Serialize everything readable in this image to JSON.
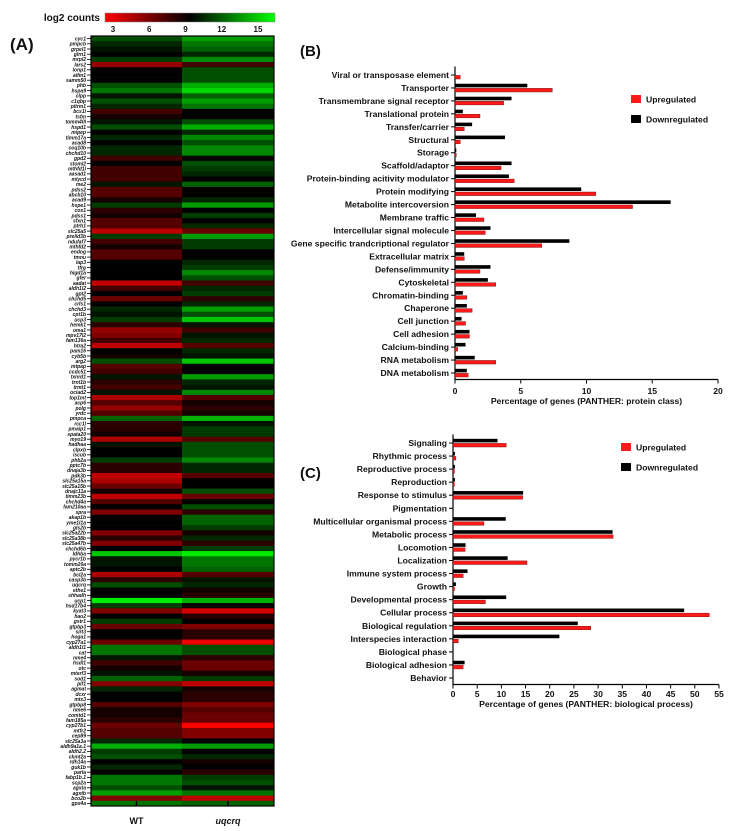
{
  "chart_data": [
    {
      "panel": "(A)",
      "type": "heatmap",
      "colorbar": {
        "label": "log2 counts",
        "ticks": [
          3,
          6,
          9,
          12,
          15
        ],
        "low_color": "#ff0000",
        "mid_color": "#000000",
        "high_color": "#00ff00"
      },
      "columns": [
        "WT",
        "uqcrq"
      ],
      "rows": [
        "cyc1",
        "pmpcb",
        "grpel1",
        "glrn1",
        "mrpl2",
        "lars2",
        "lonp1",
        "aifm1",
        "samm50",
        "phb",
        "hspa9",
        "clpp",
        "c1qbp",
        "pitrm1",
        "bcs1l",
        "tsfm",
        "tomm40l",
        "hspd1",
        "mipep",
        "timm17a",
        "acad8",
        "coq10b",
        "chchd10",
        "gpd2",
        "stoml2",
        "mthfd1l",
        "aasad1",
        "mlycd",
        "me2",
        "pdss2",
        "abcb10",
        "acad9",
        "hspe1",
        "cox1",
        "pdss1",
        "sfxn1",
        "ptrh1",
        "slc25a5",
        "prelid3b",
        "ndufaf7",
        "mthfd2",
        "endog",
        "tmnu",
        "lap3",
        "tfrg",
        "higd1a",
        "gfer",
        "aadat",
        "aldh1l2",
        "gpt2",
        "chchd5",
        "crls1",
        "chchd3",
        "cpt1b",
        "ucp3",
        "hemk1",
        "oma1",
        "mpv17l2",
        "fam136a",
        "htra2",
        "pam16",
        "cyb5b",
        "arg2",
        "mtpap",
        "ccdc51",
        "txnrd1",
        "trnt1b",
        "trmt1",
        "ociad2",
        "top1mt",
        "acp6",
        "polg",
        "yrdc",
        "pmpca",
        "rcc1l",
        "pmaip1",
        "spata20",
        "myo19",
        "hadhaa",
        "clpxb",
        "iscub",
        "phb2a",
        "pptc7b",
        "dnaja3b",
        "pdk3b",
        "slc25a15a",
        "slc25a15b",
        "dnajc11a",
        "timm23b",
        "chchd4a",
        "fam210aa",
        "spra",
        "akap1b",
        "yme1l1a",
        "gls2b",
        "slc25a22b",
        "slc25a38b",
        "slc25a47b",
        "chchd6b",
        "ldhba",
        "pycr1b",
        "tomm20a",
        "aptc2b",
        "bcl2a",
        "casp3b",
        "uqcrq",
        "ethe1",
        "shhadh",
        "ucp1",
        "hsd17b4",
        "kyat3",
        "hao2",
        "gstr1",
        "gtpbp3",
        "sirt3",
        "hoga1",
        "cyp27a1",
        "aldh1l1",
        "cat",
        "nme4",
        "hsdl1",
        "otc",
        "mterf3",
        "sod1",
        "pif1",
        "agmat",
        "dcxr",
        "mtx3",
        "gtpbp8",
        "nme6",
        "comtd1",
        "fam185a",
        "cyp27b1",
        "mtfr2",
        "cep89",
        "slc25a3a",
        "aldh9a1a.1",
        "aldh2.2",
        "ckmt2a",
        "rdh14a",
        "guk1b",
        "parla",
        "fabp1b.1",
        "scp2a",
        "agxta",
        "agxtb",
        "bco2b",
        "gpx4a"
      ],
      "values": [
        [
          11,
          13
        ],
        [
          10,
          12
        ],
        [
          9.5,
          11.5
        ],
        [
          9,
          10
        ],
        [
          10.5,
          12.5
        ],
        [
          5.5,
          7.5
        ],
        [
          9,
          11
        ],
        [
          9,
          11
        ],
        [
          9,
          11
        ],
        [
          11,
          13.5
        ],
        [
          12,
          14.5
        ],
        [
          9.5,
          11.5
        ],
        [
          11,
          13
        ],
        [
          10,
          12
        ],
        [
          7.5,
          9
        ],
        [
          8.5,
          9
        ],
        [
          9.5,
          11
        ],
        [
          11,
          13.5
        ],
        [
          9,
          10
        ],
        [
          10,
          12.5
        ],
        [
          9,
          11
        ],
        [
          10,
          12.5
        ],
        [
          10,
          12.5
        ],
        [
          7.5,
          9
        ],
        [
          9,
          11
        ],
        [
          7.5,
          10.5
        ],
        [
          7.5,
          10
        ],
        [
          7.5,
          9
        ],
        [
          9.5,
          11.5
        ],
        [
          7,
          9
        ],
        [
          7,
          9
        ],
        [
          8.5,
          10
        ],
        [
          10.5,
          13
        ],
        [
          8,
          9
        ],
        [
          8.5,
          10.5
        ],
        [
          7,
          9
        ],
        [
          7,
          10
        ],
        [
          4.5,
          6.5
        ],
        [
          10.5,
          13
        ],
        [
          7.5,
          10.5
        ],
        [
          8.5,
          10.5
        ],
        [
          7,
          9
        ],
        [
          7,
          9
        ],
        [
          9,
          10
        ],
        [
          9,
          10.5
        ],
        [
          9,
          12.5
        ],
        [
          9,
          11
        ],
        [
          4.5,
          7.5
        ],
        [
          7.5,
          10
        ],
        [
          9,
          10.5
        ],
        [
          6.5,
          8
        ],
        [
          9,
          10
        ],
        [
          10,
          13
        ],
        [
          9.5,
          11
        ],
        [
          10.5,
          14
        ],
        [
          8,
          9.5
        ],
        [
          5.5,
          7.5
        ],
        [
          6,
          9.5
        ],
        [
          7.5,
          10
        ],
        [
          4.5,
          7
        ],
        [
          9,
          10
        ],
        [
          8.5,
          9.5
        ],
        [
          11,
          14
        ],
        [
          7,
          9
        ],
        [
          7.5,
          9
        ],
        [
          9.5,
          13
        ],
        [
          8,
          10
        ],
        [
          7.5,
          9.5
        ],
        [
          9.5,
          12.5
        ],
        [
          5,
          7
        ],
        [
          7,
          8.5
        ],
        [
          5.5,
          8
        ],
        [
          7,
          8.5
        ],
        [
          11.5,
          13.5
        ],
        [
          8,
          9.5
        ],
        [
          8,
          10.5
        ],
        [
          8.5,
          10.5
        ],
        [
          5,
          7
        ],
        [
          9.5,
          11
        ],
        [
          9,
          11
        ],
        [
          9,
          11
        ],
        [
          10.5,
          12.5
        ],
        [
          8,
          10
        ],
        [
          8,
          10
        ],
        [
          4.5,
          7
        ],
        [
          5,
          9
        ],
        [
          6.5,
          9
        ],
        [
          8.5,
          11
        ],
        [
          4.5,
          6.5
        ],
        [
          7,
          9
        ],
        [
          9,
          11
        ],
        [
          6,
          8
        ],
        [
          9,
          11.5
        ],
        [
          9,
          11.5
        ],
        [
          9,
          10.5
        ],
        [
          6,
          8.5
        ],
        [
          8,
          10
        ],
        [
          6,
          8
        ],
        [
          9,
          10.5
        ],
        [
          14,
          15.5
        ],
        [
          9.5,
          12
        ],
        [
          9.5,
          12
        ],
        [
          9,
          11.5
        ],
        [
          5,
          7
        ],
        [
          8,
          9.5
        ],
        [
          11,
          10
        ],
        [
          9,
          8.5
        ],
        [
          9,
          8
        ],
        [
          15,
          13.5
        ],
        [
          10.5,
          9
        ],
        [
          6,
          4
        ],
        [
          9,
          8
        ],
        [
          10.5,
          9
        ],
        [
          6.5,
          6
        ],
        [
          9,
          8
        ],
        [
          9,
          8
        ],
        [
          6.5,
          3.5
        ],
        [
          12,
          11
        ],
        [
          12,
          11
        ],
        [
          9.5,
          8
        ],
        [
          7.5,
          6.5
        ],
        [
          8.5,
          6.5
        ],
        [
          9.5,
          8.5
        ],
        [
          11.5,
          10.5
        ],
        [
          6,
          4.5
        ],
        [
          10,
          8.5
        ],
        [
          9,
          8
        ],
        [
          9,
          8
        ],
        [
          7,
          6
        ],
        [
          8.5,
          7
        ],
        [
          8.5,
          6.5
        ],
        [
          8,
          6.5
        ],
        [
          6.5,
          3
        ],
        [
          7,
          6
        ],
        [
          7,
          6
        ],
        [
          10,
          9
        ],
        [
          13.5,
          13
        ],
        [
          10.5,
          9
        ],
        [
          11,
          10
        ],
        [
          9,
          8.5
        ],
        [
          10,
          9
        ],
        [
          9,
          8
        ],
        [
          12,
          10.5
        ],
        [
          12,
          11
        ],
        [
          11,
          9.5
        ],
        [
          13,
          12
        ],
        [
          6,
          4.5
        ],
        [
          12,
          11.5
        ]
      ]
    },
    {
      "panel": "(B)",
      "type": "bar",
      "orientation": "horizontal",
      "xlabel": "Percentage of genes (PANTHER: protein class)",
      "xlim": [
        0,
        20
      ],
      "xticks": [
        0,
        5,
        10,
        15,
        20
      ],
      "legend": {
        "position": "top-right"
      },
      "categories": [
        "Viral or transposase element",
        "Transporter",
        "Transmembrane signal receptor",
        "Translational protein",
        "Transfer/carrier",
        "Structural",
        "Storage",
        "Scaffold/adaptor",
        "Protein-binding acitivity modulator",
        "Protein modifying",
        "Metabolite intercoversion",
        "Membrane traffic",
        "Intercellular signal molecule",
        "Gene specific trandcriptional regulator",
        "Extracellular matrix",
        "Defense/immunity",
        "Cytoskeletal",
        "Chromatin-binding",
        "Chaperone",
        "Cell junction",
        "Cell adhesion",
        "Calcium-binding",
        "RNA metabolism",
        "DNA metabolism"
      ],
      "series": [
        {
          "name": "Upregulated",
          "color": "#ff1a1a",
          "values": [
            0.4,
            7.4,
            3.7,
            1.9,
            0.7,
            0.4,
            0.1,
            3.5,
            4.5,
            10.7,
            13.5,
            2.2,
            2.3,
            6.6,
            0.7,
            1.9,
            3.1,
            0.9,
            1.3,
            0.8,
            1.1,
            0.2,
            3.1,
            1.0
          ]
        },
        {
          "name": "Downregulated",
          "color": "#000000",
          "values": [
            0,
            5.5,
            4.3,
            0.6,
            1.3,
            3.8,
            0.1,
            4.3,
            4.1,
            9.6,
            16.4,
            1.6,
            2.7,
            8.7,
            0.7,
            2.7,
            2.5,
            0.6,
            0.9,
            0.5,
            1.1,
            0.8,
            1.5,
            0.9
          ]
        }
      ]
    },
    {
      "panel": "(C)",
      "type": "bar",
      "orientation": "horizontal",
      "xlabel": "Percentage of genes (PANTHER: biological process)",
      "xlim": [
        0,
        55
      ],
      "xticks": [
        0,
        5,
        10,
        15,
        20,
        25,
        30,
        35,
        40,
        45,
        50,
        55
      ],
      "legend": {
        "position": "top-right"
      },
      "categories": [
        "Signaling",
        "Rhythmic process",
        "Reproductive process",
        "Reproduction",
        "Response to stimulus",
        "Pigmentation",
        "Multicellular organismal process",
        "Metabolic process",
        "Locomotion",
        "Localization",
        "Immune system process",
        "Growth",
        "Developmental process",
        "Cellular process",
        "Biological regulation",
        "Interspecies interaction",
        "Biological phase",
        "Biological adhesion",
        "Behavior"
      ],
      "series": [
        {
          "name": "Upregulated",
          "color": "#ff1a1a",
          "values": [
            11,
            0.6,
            0.3,
            0.3,
            14.4,
            0,
            6.4,
            33.1,
            2.5,
            15.3,
            2.1,
            0.3,
            6.7,
            53,
            28.5,
            1.1,
            0,
            2.1,
            0
          ]
        },
        {
          "name": "Downregulated",
          "color": "#000000",
          "values": [
            9.2,
            0.4,
            0.4,
            0.4,
            14.5,
            0,
            10.9,
            33,
            2.6,
            11.3,
            3,
            0.6,
            11,
            47.8,
            25.8,
            22,
            0,
            2.4,
            0
          ]
        }
      ]
    }
  ]
}
